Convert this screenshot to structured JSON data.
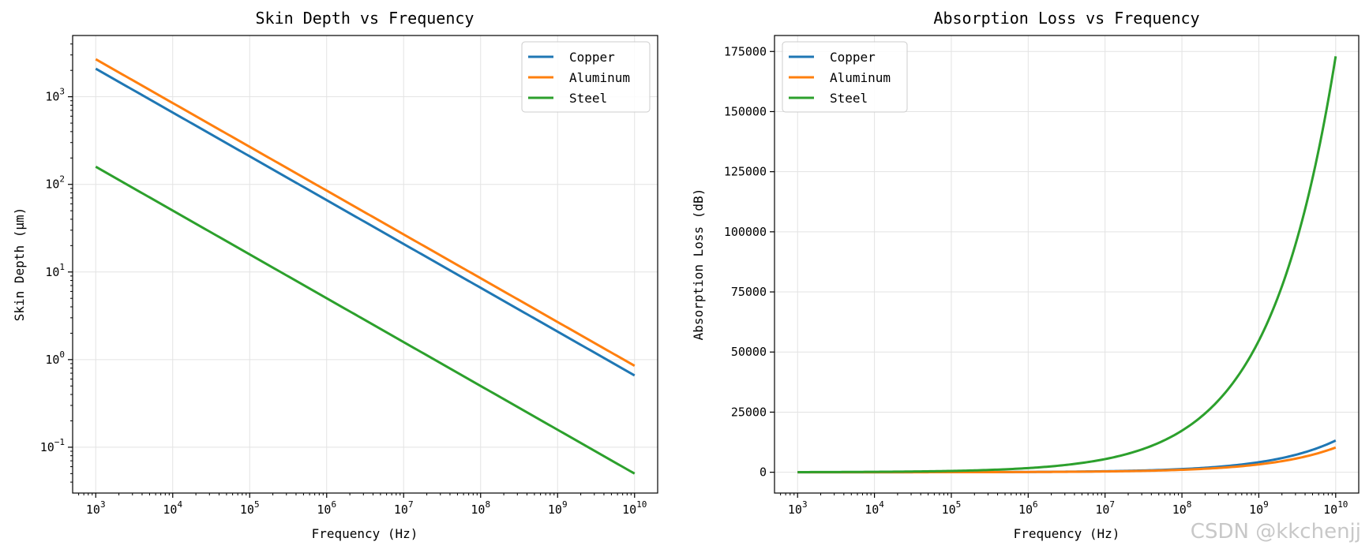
{
  "watermark": "CSDN @kkchenjj",
  "chart_data": [
    {
      "type": "line",
      "title": "Skin Depth vs Frequency",
      "xlabel": "Frequency (Hz)",
      "ylabel": "Skin Depth (μm)",
      "xscale": "log",
      "yscale": "log",
      "xlim": [
        501,
        19950000000
      ],
      "ylim": [
        0.03,
        5000
      ],
      "xticks": [
        {
          "value": 1000,
          "base": "10",
          "exp": "3"
        },
        {
          "value": 10000,
          "base": "10",
          "exp": "4"
        },
        {
          "value": 100000,
          "base": "10",
          "exp": "5"
        },
        {
          "value": 1000000,
          "base": "10",
          "exp": "6"
        },
        {
          "value": 10000000,
          "base": "10",
          "exp": "7"
        },
        {
          "value": 100000000,
          "base": "10",
          "exp": "8"
        },
        {
          "value": 1000000000,
          "base": "10",
          "exp": "9"
        },
        {
          "value": 10000000000,
          "base": "10",
          "exp": "10"
        }
      ],
      "yticks": [
        {
          "value": 0.1,
          "base": "10",
          "exp": "−1"
        },
        {
          "value": 1,
          "base": "10",
          "exp": "0"
        },
        {
          "value": 10,
          "base": "10",
          "exp": "1"
        },
        {
          "value": 100,
          "base": "10",
          "exp": "2"
        },
        {
          "value": 1000,
          "base": "10",
          "exp": "3"
        }
      ],
      "grid": true,
      "legend_position": "top-right",
      "series": [
        {
          "name": "Copper",
          "color": "#1f77b4",
          "x_start": 1000,
          "x_end": 10000000000,
          "y_start": 2090,
          "y_end": 0.66
        },
        {
          "name": "Aluminum",
          "color": "#ff7f0e",
          "x_start": 1000,
          "x_end": 10000000000,
          "y_start": 2680,
          "y_end": 0.85
        },
        {
          "name": "Steel",
          "color": "#2ca02c",
          "x_start": 1000,
          "x_end": 10000000000,
          "y_start": 159,
          "y_end": 0.05
        }
      ]
    },
    {
      "type": "line",
      "title": "Absorption Loss vs Frequency",
      "xlabel": "Frequency (Hz)",
      "ylabel": "Absorption Loss (dB)",
      "xscale": "log",
      "yscale": "linear",
      "xlim": [
        501,
        19950000000
      ],
      "ylim": [
        -8650,
        181650
      ],
      "xticks": [
        {
          "value": 1000,
          "base": "10",
          "exp": "3"
        },
        {
          "value": 10000,
          "base": "10",
          "exp": "4"
        },
        {
          "value": 100000,
          "base": "10",
          "exp": "5"
        },
        {
          "value": 1000000,
          "base": "10",
          "exp": "6"
        },
        {
          "value": 10000000,
          "base": "10",
          "exp": "7"
        },
        {
          "value": 100000000,
          "base": "10",
          "exp": "8"
        },
        {
          "value": 1000000000,
          "base": "10",
          "exp": "9"
        },
        {
          "value": 10000000000,
          "base": "10",
          "exp": "10"
        }
      ],
      "yticks": [
        {
          "value": 0,
          "label": "0"
        },
        {
          "value": 25000,
          "label": "25000"
        },
        {
          "value": 50000,
          "label": "50000"
        },
        {
          "value": 75000,
          "label": "75000"
        },
        {
          "value": 100000,
          "label": "100000"
        },
        {
          "value": 125000,
          "label": "125000"
        },
        {
          "value": 150000,
          "label": "150000"
        },
        {
          "value": 175000,
          "label": "175000"
        }
      ],
      "grid": true,
      "legend_position": "top-left",
      "series": [
        {
          "name": "Copper",
          "color": "#1f77b4",
          "x_start": 1000,
          "x_end": 10000000000,
          "y_at_1e10": 13200
        },
        {
          "name": "Aluminum",
          "color": "#ff7f0e",
          "x_start": 1000,
          "x_end": 10000000000,
          "y_at_1e10": 10300
        },
        {
          "name": "Steel",
          "color": "#2ca02c",
          "x_start": 1000,
          "x_end": 10000000000,
          "y_at_1e10": 173000
        }
      ]
    }
  ]
}
